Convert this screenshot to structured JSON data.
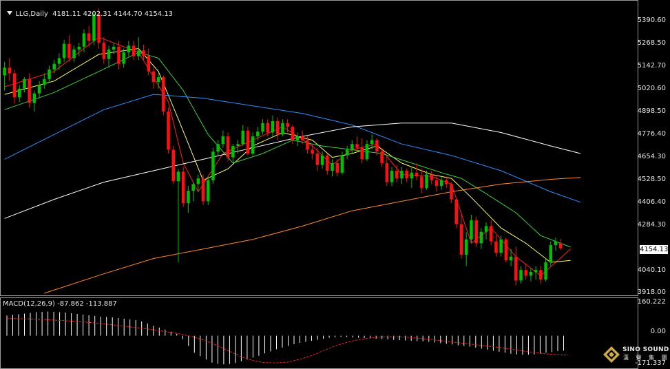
{
  "header": {
    "symbol": "LLG,Daily",
    "ohlc": "4181.11 4202.31 4144.70 4154.13"
  },
  "price_axis": {
    "ticks": [
      "5390.60",
      "5268.50",
      "5142.70",
      "5020.60",
      "4898.50",
      "4776.40",
      "4654.30",
      "4528.50",
      "4406.40",
      "4284.30",
      "4154.13",
      "4040.10",
      "3918.00"
    ],
    "last_price": "4154.13"
  },
  "macd_panel": {
    "label": "MACD(12,26,9) -87.862 -113.887",
    "ticks": [
      "160.222",
      "0.00",
      "-171.337"
    ]
  },
  "logo": {
    "name": "SINO SOUND",
    "sub": "漢 聲 集 團"
  },
  "colors": {
    "up": "#00c000",
    "down": "#ff1010",
    "ma5": "#ff2020",
    "ma10": "#ffff66",
    "ma20": "#40d040",
    "ma60": "#3090ff",
    "ma120": "#ffffff",
    "ma250": "#ff8c2a",
    "macd_hist": "#ffffff",
    "macd_signal": "#ff2020"
  },
  "chart_data": {
    "type": "candlestick",
    "symbol": "LLG",
    "timeframe": "Daily",
    "ylim": [
      3918.0,
      5440.0
    ],
    "candles": [
      [
        5060,
        5130,
        4980,
        5100
      ],
      [
        5100,
        5150,
        5030,
        5070
      ],
      [
        5070,
        5090,
        4910,
        4945
      ],
      [
        4945,
        5010,
        4920,
        4990
      ],
      [
        4990,
        5050,
        4970,
        5040
      ],
      [
        5040,
        5070,
        4890,
        4915
      ],
      [
        4915,
        4980,
        4870,
        4965
      ],
      [
        4965,
        5030,
        4940,
        5010
      ],
      [
        5010,
        5070,
        4990,
        5040
      ],
      [
        5040,
        5110,
        5020,
        5090
      ],
      [
        5090,
        5140,
        5070,
        5120
      ],
      [
        5120,
        5175,
        5090,
        5150
      ],
      [
        5150,
        5245,
        5130,
        5225
      ],
      [
        5225,
        5270,
        5130,
        5150
      ],
      [
        5150,
        5215,
        5130,
        5195
      ],
      [
        5195,
        5230,
        5160,
        5210
      ],
      [
        5210,
        5300,
        5180,
        5280
      ],
      [
        5280,
        5320,
        5210,
        5240
      ],
      [
        5240,
        5400,
        5220,
        5380
      ],
      [
        5380,
        5410,
        5200,
        5230
      ],
      [
        5230,
        5260,
        5120,
        5145
      ],
      [
        5145,
        5215,
        5100,
        5195
      ],
      [
        5195,
        5230,
        5170,
        5210
      ],
      [
        5210,
        5240,
        5090,
        5120
      ],
      [
        5120,
        5200,
        5100,
        5180
      ],
      [
        5180,
        5240,
        5160,
        5215
      ],
      [
        5215,
        5240,
        5140,
        5160
      ],
      [
        5160,
        5260,
        5140,
        5190
      ],
      [
        5190,
        5220,
        5140,
        5160
      ],
      [
        5160,
        5200,
        5060,
        5080
      ],
      [
        5080,
        5100,
        4990,
        5025
      ],
      [
        5025,
        5070,
        4990,
        5050
      ],
      [
        5050,
        5060,
        4850,
        4870
      ],
      [
        4870,
        4890,
        4650,
        4670
      ],
      [
        4670,
        4690,
        4490,
        4505
      ],
      [
        4505,
        4570,
        4080,
        4555
      ],
      [
        4555,
        4580,
        4370,
        4390
      ],
      [
        4390,
        4480,
        4340,
        4455
      ],
      [
        4455,
        4500,
        4400,
        4490
      ],
      [
        4490,
        4540,
        4450,
        4520
      ],
      [
        4520,
        4540,
        4380,
        4400
      ],
      [
        4400,
        4530,
        4380,
        4510
      ],
      [
        4510,
        4680,
        4490,
        4660
      ],
      [
        4660,
        4720,
        4640,
        4700
      ],
      [
        4700,
        4770,
        4680,
        4740
      ],
      [
        4740,
        4760,
        4610,
        4630
      ],
      [
        4630,
        4700,
        4600,
        4690
      ],
      [
        4690,
        4720,
        4650,
        4700
      ],
      [
        4700,
        4800,
        4690,
        4770
      ],
      [
        4770,
        4790,
        4640,
        4650
      ],
      [
        4650,
        4760,
        4640,
        4740
      ],
      [
        4740,
        4790,
        4720,
        4765
      ],
      [
        4765,
        4830,
        4750,
        4810
      ],
      [
        4810,
        4830,
        4740,
        4760
      ],
      [
        4760,
        4850,
        4740,
        4820
      ],
      [
        4820,
        4840,
        4720,
        4750
      ],
      [
        4750,
        4830,
        4740,
        4810
      ],
      [
        4810,
        4830,
        4760,
        4790
      ],
      [
        4790,
        4800,
        4700,
        4720
      ],
      [
        4720,
        4760,
        4690,
        4740
      ],
      [
        4740,
        4770,
        4700,
        4720
      ],
      [
        4720,
        4740,
        4650,
        4670
      ],
      [
        4670,
        4700,
        4620,
        4650
      ],
      [
        4650,
        4680,
        4560,
        4590
      ],
      [
        4590,
        4660,
        4570,
        4640
      ],
      [
        4640,
        4650,
        4540,
        4560
      ],
      [
        4560,
        4620,
        4530,
        4600
      ],
      [
        4600,
        4620,
        4530,
        4550
      ],
      [
        4550,
        4660,
        4540,
        4640
      ],
      [
        4640,
        4690,
        4620,
        4670
      ],
      [
        4670,
        4720,
        4650,
        4700
      ],
      [
        4700,
        4740,
        4660,
        4680
      ],
      [
        4680,
        4730,
        4600,
        4620
      ],
      [
        4620,
        4720,
        4610,
        4700
      ],
      [
        4700,
        4750,
        4670,
        4720
      ],
      [
        4720,
        4730,
        4640,
        4660
      ],
      [
        4660,
        4680,
        4580,
        4600
      ],
      [
        4600,
        4640,
        4480,
        4500
      ],
      [
        4500,
        4580,
        4480,
        4560
      ],
      [
        4560,
        4590,
        4500,
        4520
      ],
      [
        4520,
        4580,
        4490,
        4560
      ],
      [
        4560,
        4570,
        4500,
        4520
      ],
      [
        4520,
        4580,
        4470,
        4550
      ],
      [
        4550,
        4600,
        4510,
        4530
      ],
      [
        4530,
        4570,
        4440,
        4470
      ],
      [
        4470,
        4560,
        4460,
        4540
      ],
      [
        4540,
        4560,
        4490,
        4510
      ],
      [
        4510,
        4540,
        4450,
        4480
      ],
      [
        4480,
        4530,
        4460,
        4510
      ],
      [
        4510,
        4530,
        4470,
        4490
      ],
      [
        4490,
        4500,
        4390,
        4410
      ],
      [
        4410,
        4420,
        4260,
        4280
      ],
      [
        4280,
        4340,
        4100,
        4120
      ],
      [
        4120,
        4240,
        4060,
        4200
      ],
      [
        4200,
        4330,
        4180,
        4300
      ],
      [
        4300,
        4320,
        4160,
        4180
      ],
      [
        4180,
        4260,
        4150,
        4240
      ],
      [
        4240,
        4290,
        4200,
        4270
      ],
      [
        4270,
        4300,
        4170,
        4190
      ],
      [
        4190,
        4220,
        4110,
        4130
      ],
      [
        4130,
        4220,
        4110,
        4200
      ],
      [
        4200,
        4210,
        4080,
        4090
      ],
      [
        4090,
        4150,
        4060,
        4110
      ],
      [
        4110,
        4160,
        3960,
        3985
      ],
      [
        3985,
        4060,
        3970,
        4040
      ],
      [
        4040,
        4070,
        3990,
        4010
      ],
      [
        4010,
        4050,
        3980,
        4030
      ],
      [
        4030,
        4060,
        3990,
        4040
      ],
      [
        4040,
        4060,
        3970,
        3990
      ],
      [
        3990,
        4100,
        3980,
        4080
      ],
      [
        4080,
        4190,
        4060,
        4170
      ],
      [
        4170,
        4210,
        4140,
        4190
      ],
      [
        4181.11,
        4202.31,
        4144.7,
        4154.13
      ]
    ],
    "series": [
      {
        "name": "MA5",
        "points": [
          [
            0,
            5000
          ],
          [
            10,
            5080
          ],
          [
            19,
            5260
          ],
          [
            27,
            5180
          ],
          [
            33,
            4920
          ],
          [
            36,
            4600
          ],
          [
            39,
            4450
          ],
          [
            44,
            4650
          ],
          [
            50,
            4720
          ],
          [
            56,
            4790
          ],
          [
            62,
            4690
          ],
          [
            66,
            4590
          ],
          [
            70,
            4670
          ],
          [
            75,
            4700
          ],
          [
            80,
            4540
          ],
          [
            86,
            4530
          ],
          [
            90,
            4490
          ],
          [
            94,
            4180
          ],
          [
            98,
            4260
          ],
          [
            103,
            4110
          ],
          [
            108,
            4010
          ],
          [
            114,
            4150
          ]
        ]
      },
      {
        "name": "MA10",
        "points": [
          [
            0,
            4960
          ],
          [
            10,
            5030
          ],
          [
            19,
            5170
          ],
          [
            27,
            5200
          ],
          [
            31,
            5080
          ],
          [
            35,
            4830
          ],
          [
            40,
            4510
          ],
          [
            45,
            4570
          ],
          [
            50,
            4690
          ],
          [
            56,
            4760
          ],
          [
            62,
            4720
          ],
          [
            66,
            4630
          ],
          [
            70,
            4650
          ],
          [
            75,
            4690
          ],
          [
            80,
            4600
          ],
          [
            86,
            4540
          ],
          [
            90,
            4520
          ],
          [
            94,
            4420
          ],
          [
            100,
            4260
          ],
          [
            105,
            4180
          ],
          [
            110,
            4080
          ],
          [
            114,
            4090
          ]
        ]
      },
      {
        "name": "MA20",
        "points": [
          [
            0,
            4880
          ],
          [
            10,
            4970
          ],
          [
            19,
            5080
          ],
          [
            27,
            5180
          ],
          [
            31,
            5150
          ],
          [
            36,
            4980
          ],
          [
            41,
            4750
          ],
          [
            46,
            4600
          ],
          [
            52,
            4650
          ],
          [
            58,
            4720
          ],
          [
            64,
            4690
          ],
          [
            70,
            4670
          ],
          [
            76,
            4650
          ],
          [
            82,
            4600
          ],
          [
            88,
            4550
          ],
          [
            92,
            4520
          ],
          [
            97,
            4440
          ],
          [
            103,
            4340
          ],
          [
            108,
            4220
          ],
          [
            114,
            4160
          ]
        ]
      },
      {
        "name": "MA60",
        "points": [
          [
            0,
            4620
          ],
          [
            10,
            4750
          ],
          [
            20,
            4880
          ],
          [
            30,
            4960
          ],
          [
            40,
            4940
          ],
          [
            50,
            4900
          ],
          [
            60,
            4860
          ],
          [
            70,
            4800
          ],
          [
            80,
            4700
          ],
          [
            90,
            4640
          ],
          [
            100,
            4560
          ],
          [
            110,
            4450
          ],
          [
            116,
            4395
          ]
        ]
      },
      {
        "name": "MA120",
        "points": [
          [
            0,
            4310
          ],
          [
            10,
            4410
          ],
          [
            20,
            4500
          ],
          [
            30,
            4560
          ],
          [
            40,
            4620
          ],
          [
            50,
            4680
          ],
          [
            60,
            4740
          ],
          [
            70,
            4790
          ],
          [
            80,
            4810
          ],
          [
            90,
            4810
          ],
          [
            100,
            4760
          ],
          [
            110,
            4690
          ],
          [
            116,
            4650
          ]
        ]
      },
      {
        "name": "MA250",
        "points": [
          [
            8,
            3918
          ],
          [
            20,
            4020
          ],
          [
            30,
            4100
          ],
          [
            40,
            4150
          ],
          [
            50,
            4200
          ],
          [
            60,
            4270
          ],
          [
            70,
            4350
          ],
          [
            80,
            4400
          ],
          [
            90,
            4450
          ],
          [
            100,
            4490
          ],
          [
            110,
            4515
          ],
          [
            116,
            4525
          ]
        ]
      }
    ],
    "macd": {
      "ylim": [
        -171.337,
        160.222
      ],
      "histogram": [
        118,
        122,
        126,
        130,
        134,
        138,
        140,
        142,
        140,
        138,
        136,
        132,
        128,
        124,
        120,
        116,
        112,
        110,
        108,
        104,
        100,
        96,
        92,
        84,
        72,
        58,
        48,
        36,
        24,
        12,
        -20,
        -60,
        -100,
        -120,
        -140,
        -158,
        -165,
        -168,
        -166,
        -160,
        -150,
        -140,
        -128,
        -118,
        -104,
        -92,
        -80,
        -70,
        -60,
        -50,
        -42,
        -36,
        -30,
        -24,
        -18,
        -12,
        -10,
        -8,
        -8,
        -10,
        -12,
        -14,
        -16,
        -18,
        -20,
        -22,
        -24,
        -26,
        -28,
        -30,
        -32,
        -34,
        -36,
        -40,
        -44,
        -48,
        -52,
        -56,
        -60,
        -64,
        -70,
        -76,
        -82,
        -88,
        -94,
        -100,
        -106,
        -110,
        -112,
        -112,
        -110,
        -106,
        -100,
        -96,
        -90,
        -88
      ],
      "signal": [
        100,
        100,
        98,
        96,
        92,
        88,
        84,
        78,
        72,
        64,
        56,
        48,
        40,
        30,
        20,
        8,
        -8,
        -30,
        -58,
        -90,
        -122,
        -145,
        -158,
        -160,
        -155,
        -140,
        -118,
        -90,
        -62,
        -40,
        -24,
        -14,
        -8,
        -6,
        -8,
        -14,
        -20,
        -28,
        -36,
        -44,
        -52,
        -60,
        -68,
        -78,
        -88,
        -98,
        -106,
        -112,
        -114
      ]
    }
  }
}
